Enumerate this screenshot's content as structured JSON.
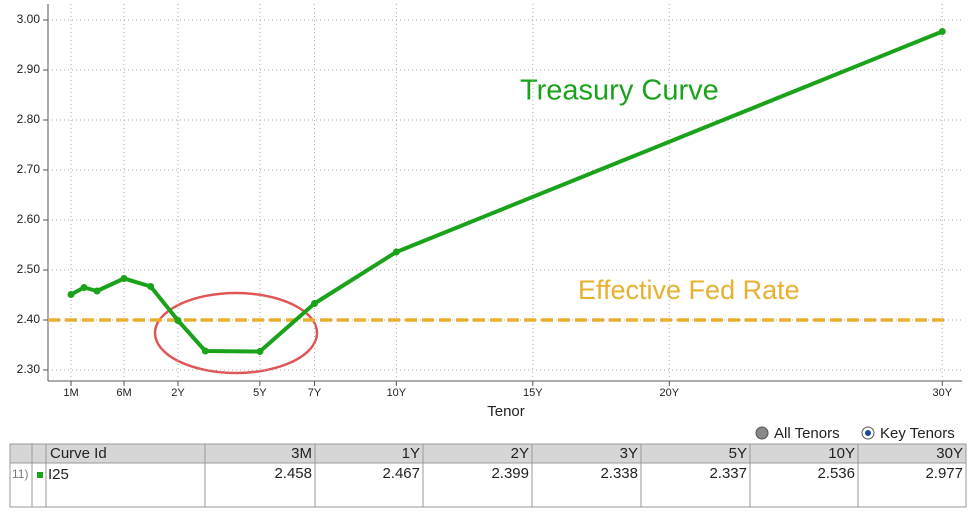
{
  "chart_data": {
    "type": "line",
    "x_label": "Tenor",
    "x": [
      0.0833,
      0.1667,
      0.25,
      0.5,
      1,
      2,
      3,
      5,
      7,
      10,
      30
    ],
    "series": [
      {
        "name": "I25",
        "color": "#1aa31a",
        "values": [
          2.451,
          2.465,
          2.458,
          2.483,
          2.467,
          2.399,
          2.338,
          2.337,
          2.433,
          2.536,
          2.977
        ]
      }
    ],
    "reference_line": {
      "value": 2.4,
      "color": "#e8b030"
    },
    "annotations": [
      {
        "text": "Treasury Curve",
        "color": "#1aa31a"
      },
      {
        "text": "Effective Fed Rate",
        "color": "#e8b030"
      }
    ],
    "xlim": [
      0,
      30.65
    ],
    "xticks": [
      {
        "value": 0.0833,
        "label": "1M"
      },
      {
        "value": 0.5,
        "label": "6M"
      },
      {
        "value": 2,
        "label": "2Y"
      },
      {
        "value": 5,
        "label": "5Y"
      },
      {
        "value": 7,
        "label": "7Y"
      },
      {
        "value": 10,
        "label": "10Y"
      },
      {
        "value": 15,
        "label": "15Y"
      },
      {
        "value": 20,
        "label": "20Y"
      },
      {
        "value": 30,
        "label": "30Y"
      }
    ],
    "ylim": [
      2.28,
      3.03
    ],
    "yticks": [
      {
        "value": 2.3,
        "label": "2.30"
      },
      {
        "value": 2.4,
        "label": "2.40"
      },
      {
        "value": 2.5,
        "label": "2.50"
      },
      {
        "value": 2.6,
        "label": "2.60"
      },
      {
        "value": 2.7,
        "label": "2.70"
      },
      {
        "value": 2.8,
        "label": "2.80"
      },
      {
        "value": 2.9,
        "label": "2.90"
      },
      {
        "value": 3.0,
        "label": "3.00"
      }
    ],
    "grid": true
  },
  "legend": {
    "options": [
      "All Tenors",
      "Key Tenors"
    ],
    "selected": 1
  },
  "table": {
    "columns": [
      "Curve Id",
      "3M",
      "1Y",
      "2Y",
      "3Y",
      "5Y",
      "10Y",
      "30Y"
    ],
    "row_index": "11)",
    "row_id": "I25",
    "value_indices": [
      2,
      4,
      5,
      6,
      7,
      9,
      10
    ]
  }
}
